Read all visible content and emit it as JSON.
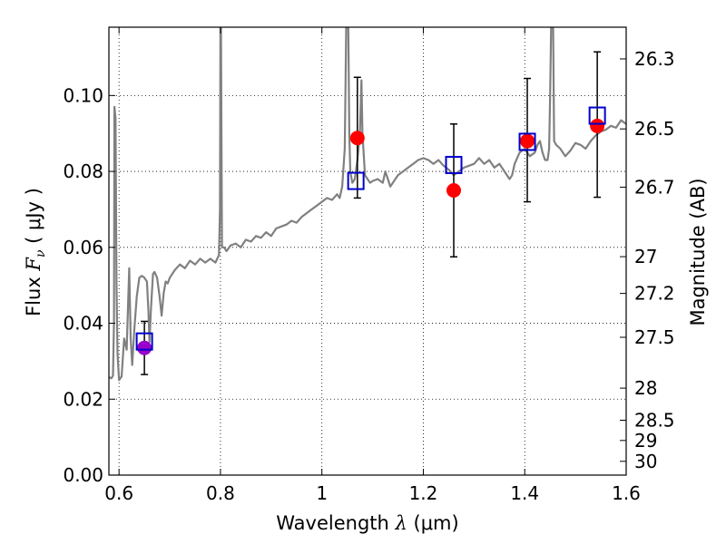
{
  "chart_data": {
    "type": "scatter",
    "xlabel": {
      "prefix": "Wavelength  ",
      "symbol": "λ",
      "unit": " (μm)"
    },
    "ylabel": {
      "prefix": "Flux  ",
      "symbol": "F",
      "sub": "ν",
      "unit": "  ( μJy )"
    },
    "y2label": "Magnitude (AB)",
    "xlim": [
      0.58,
      1.6
    ],
    "ylim": [
      0.0,
      0.118
    ],
    "grid": true,
    "x_ticks": [
      0.6,
      0.8,
      1.0,
      1.2,
      1.4,
      1.6
    ],
    "x_tick_labels": [
      "0.6",
      "0.8",
      "1",
      "1.2",
      "1.4",
      "1.6"
    ],
    "y_ticks": [
      0.0,
      0.02,
      0.04,
      0.06,
      0.08,
      0.1
    ],
    "y_tick_labels": [
      "0.00",
      "0.02",
      "0.04",
      "0.06",
      "0.08",
      "0.10"
    ],
    "y2_ticks": [
      {
        "label": "26.3",
        "mag": 26.3
      },
      {
        "label": "26.5",
        "mag": 26.5
      },
      {
        "label": "26.7",
        "mag": 26.7
      },
      {
        "label": "27",
        "mag": 27.0
      },
      {
        "label": "27.2",
        "mag": 27.2
      },
      {
        "label": "27.5",
        "mag": 27.5
      },
      {
        "label": "28",
        "mag": 28.0
      },
      {
        "label": "28.5",
        "mag": 28.5
      },
      {
        "label": "29",
        "mag": 29.0
      },
      {
        "label": "30",
        "mag": 30.0
      }
    ],
    "observed": [
      {
        "x": 0.65,
        "y": 0.0335,
        "yerr_low": 0.0265,
        "yerr_high": 0.0405,
        "color": "#9900cc"
      },
      {
        "x": 1.07,
        "y": 0.0888,
        "yerr_low": 0.073,
        "yerr_high": 0.1048,
        "color": "#ff0000"
      },
      {
        "x": 1.26,
        "y": 0.075,
        "yerr_low": 0.0575,
        "yerr_high": 0.0925,
        "color": "#ff0000"
      },
      {
        "x": 1.405,
        "y": 0.088,
        "yerr_low": 0.072,
        "yerr_high": 0.1045,
        "color": "#ff0000"
      },
      {
        "x": 1.543,
        "y": 0.092,
        "yerr_low": 0.0732,
        "yerr_high": 0.1115,
        "color": "#ff0000"
      }
    ],
    "model_boxes": [
      {
        "x": 0.65,
        "y": 0.0352
      },
      {
        "x": 1.067,
        "y": 0.0775
      },
      {
        "x": 1.26,
        "y": 0.0817
      },
      {
        "x": 1.405,
        "y": 0.0878
      },
      {
        "x": 1.543,
        "y": 0.0947
      }
    ],
    "spectrum": {
      "color": "#808080",
      "points": [
        [
          0.58,
          0.0258
        ],
        [
          0.585,
          0.0255
        ],
        [
          0.588,
          0.0262
        ],
        [
          0.59,
          0.04
        ],
        [
          0.591,
          0.097
        ],
        [
          0.593,
          0.094
        ],
        [
          0.595,
          0.05
        ],
        [
          0.597,
          0.032
        ],
        [
          0.6,
          0.025
        ],
        [
          0.605,
          0.026
        ],
        [
          0.61,
          0.036
        ],
        [
          0.615,
          0.033
        ],
        [
          0.618,
          0.0455
        ],
        [
          0.62,
          0.0545
        ],
        [
          0.623,
          0.036
        ],
        [
          0.626,
          0.029
        ],
        [
          0.63,
          0.038
        ],
        [
          0.635,
          0.047
        ],
        [
          0.64,
          0.052
        ],
        [
          0.645,
          0.0525
        ],
        [
          0.65,
          0.052
        ],
        [
          0.655,
          0.051
        ],
        [
          0.658,
          0.043
        ],
        [
          0.66,
          0.035
        ],
        [
          0.663,
          0.044
        ],
        [
          0.667,
          0.053
        ],
        [
          0.67,
          0.0535
        ],
        [
          0.675,
          0.052
        ],
        [
          0.68,
          0.047
        ],
        [
          0.684,
          0.042
        ],
        [
          0.688,
          0.048
        ],
        [
          0.692,
          0.051
        ],
        [
          0.696,
          0.0505
        ],
        [
          0.7,
          0.052
        ],
        [
          0.71,
          0.054
        ],
        [
          0.72,
          0.0555
        ],
        [
          0.73,
          0.0545
        ],
        [
          0.74,
          0.0565
        ],
        [
          0.75,
          0.0555
        ],
        [
          0.76,
          0.057
        ],
        [
          0.77,
          0.056
        ],
        [
          0.78,
          0.057
        ],
        [
          0.79,
          0.056
        ],
        [
          0.797,
          0.058
        ],
        [
          0.799,
          0.07
        ],
        [
          0.8,
          0.118
        ],
        [
          0.801,
          0.118
        ],
        [
          0.803,
          0.06
        ],
        [
          0.807,
          0.06
        ],
        [
          0.812,
          0.059
        ],
        [
          0.82,
          0.0605
        ],
        [
          0.83,
          0.061
        ],
        [
          0.84,
          0.06
        ],
        [
          0.85,
          0.062
        ],
        [
          0.86,
          0.0615
        ],
        [
          0.87,
          0.063
        ],
        [
          0.88,
          0.0625
        ],
        [
          0.89,
          0.064
        ],
        [
          0.9,
          0.063
        ],
        [
          0.91,
          0.065
        ],
        [
          0.92,
          0.0655
        ],
        [
          0.93,
          0.066
        ],
        [
          0.94,
          0.067
        ],
        [
          0.95,
          0.0665
        ],
        [
          0.96,
          0.068
        ],
        [
          0.97,
          0.069
        ],
        [
          0.98,
          0.07
        ],
        [
          0.99,
          0.071
        ],
        [
          1.0,
          0.072
        ],
        [
          1.01,
          0.073
        ],
        [
          1.02,
          0.0725
        ],
        [
          1.03,
          0.074
        ],
        [
          1.035,
          0.073
        ],
        [
          1.04,
          0.076
        ],
        [
          1.045,
          0.086
        ],
        [
          1.048,
          0.118
        ],
        [
          1.052,
          0.118
        ],
        [
          1.054,
          0.09
        ],
        [
          1.056,
          0.08
        ],
        [
          1.06,
          0.077
        ],
        [
          1.065,
          0.078
        ],
        [
          1.07,
          0.083
        ],
        [
          1.075,
          0.09
        ],
        [
          1.078,
          0.104
        ],
        [
          1.08,
          0.09
        ],
        [
          1.085,
          0.079
        ],
        [
          1.09,
          0.078
        ],
        [
          1.095,
          0.077
        ],
        [
          1.1,
          0.0775
        ],
        [
          1.11,
          0.078
        ],
        [
          1.12,
          0.077
        ],
        [
          1.125,
          0.08
        ],
        [
          1.13,
          0.078
        ],
        [
          1.135,
          0.076
        ],
        [
          1.14,
          0.077
        ],
        [
          1.15,
          0.079
        ],
        [
          1.16,
          0.08
        ],
        [
          1.17,
          0.081
        ],
        [
          1.18,
          0.082
        ],
        [
          1.19,
          0.083
        ],
        [
          1.2,
          0.0835
        ],
        [
          1.21,
          0.083
        ],
        [
          1.22,
          0.082
        ],
        [
          1.23,
          0.083
        ],
        [
          1.24,
          0.0815
        ],
        [
          1.25,
          0.0805
        ],
        [
          1.26,
          0.079
        ],
        [
          1.27,
          0.08
        ],
        [
          1.28,
          0.081
        ],
        [
          1.29,
          0.0815
        ],
        [
          1.3,
          0.082
        ],
        [
          1.31,
          0.0835
        ],
        [
          1.32,
          0.082
        ],
        [
          1.33,
          0.083
        ],
        [
          1.34,
          0.081
        ],
        [
          1.35,
          0.082
        ],
        [
          1.36,
          0.08
        ],
        [
          1.37,
          0.078
        ],
        [
          1.375,
          0.079
        ],
        [
          1.38,
          0.082
        ],
        [
          1.39,
          0.085
        ],
        [
          1.4,
          0.086
        ],
        [
          1.41,
          0.084
        ],
        [
          1.42,
          0.085
        ],
        [
          1.425,
          0.087
        ],
        [
          1.43,
          0.088
        ],
        [
          1.435,
          0.085
        ],
        [
          1.44,
          0.083
        ],
        [
          1.445,
          0.083
        ],
        [
          1.448,
          0.086
        ],
        [
          1.45,
          0.1
        ],
        [
          1.452,
          0.118
        ],
        [
          1.456,
          0.118
        ],
        [
          1.458,
          0.088
        ],
        [
          1.462,
          0.087
        ],
        [
          1.47,
          0.086
        ],
        [
          1.48,
          0.084
        ],
        [
          1.49,
          0.0855
        ],
        [
          1.5,
          0.0875
        ],
        [
          1.51,
          0.087
        ],
        [
          1.52,
          0.086
        ],
        [
          1.53,
          0.088
        ],
        [
          1.54,
          0.0895
        ],
        [
          1.55,
          0.0905
        ],
        [
          1.56,
          0.091
        ],
        [
          1.57,
          0.092
        ],
        [
          1.58,
          0.0915
        ],
        [
          1.59,
          0.0935
        ],
        [
          1.6,
          0.0925
        ]
      ]
    }
  }
}
